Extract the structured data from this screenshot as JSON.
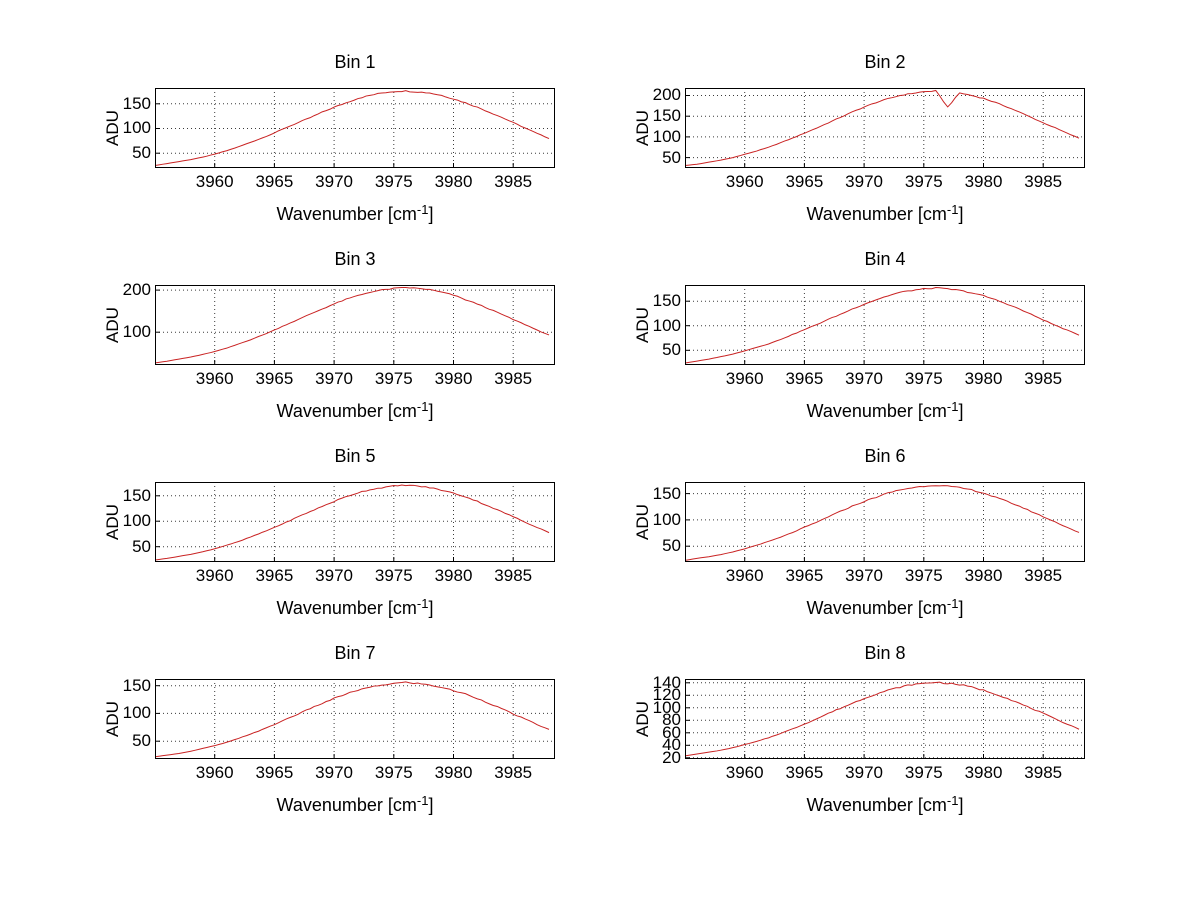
{
  "figure": {
    "background": "#ffffff"
  },
  "axis_labels": {
    "ylabel": "ADU",
    "xlabel_prefix": "Wavenumber [cm",
    "xlabel_sup": "-1",
    "xlabel_suffix": "]"
  },
  "style": {
    "line_color": "#c92323",
    "grid_color": "#3a3a3a",
    "axis_color": "#000000",
    "noise_amp": 2.4
  },
  "chart_data": [
    {
      "type": "line",
      "title": "Bin 1",
      "xlabel": "Wavenumber [cm^-1]",
      "ylabel": "ADU",
      "x_start": 3955,
      "x_step": 1,
      "values": [
        25,
        29,
        33,
        37,
        42,
        48,
        55,
        63,
        72,
        81,
        91,
        102,
        112,
        122,
        133,
        143,
        152,
        161,
        167,
        172,
        175,
        176,
        174,
        172,
        167,
        160,
        152,
        143,
        133,
        123,
        112,
        101,
        90,
        80
      ],
      "xticks": [
        3960,
        3965,
        3970,
        3975,
        3980,
        3985
      ],
      "yticks": [
        50,
        100,
        150
      ],
      "xlim": [
        3955,
        3988.5
      ],
      "ylim": [
        20,
        182
      ],
      "grid": true
    },
    {
      "type": "line",
      "title": "Bin 2",
      "xlabel": "Wavenumber [cm^-1]",
      "ylabel": "ADU",
      "x_start": 3955,
      "x_step": 1,
      "values": [
        31,
        34,
        39,
        44,
        50,
        58,
        66,
        75,
        86,
        97,
        109,
        121,
        134,
        147,
        160,
        172,
        183,
        192,
        200,
        205,
        209,
        211,
        172,
        206,
        200,
        193,
        183,
        172,
        160,
        147,
        134,
        122,
        109,
        97
      ],
      "xticks": [
        3960,
        3965,
        3970,
        3975,
        3980,
        3985
      ],
      "yticks": [
        50,
        100,
        150,
        200
      ],
      "xlim": [
        3955,
        3988.5
      ],
      "ylim": [
        25,
        218
      ],
      "grid": true
    },
    {
      "type": "line",
      "title": "Bin 3",
      "xlabel": "Wavenumber [cm^-1]",
      "ylabel": "ADU",
      "x_start": 3955,
      "x_step": 1,
      "values": [
        27,
        31,
        36,
        41,
        47,
        54,
        62,
        72,
        82,
        93,
        105,
        118,
        130,
        143,
        155,
        167,
        178,
        187,
        195,
        200,
        204,
        206,
        204,
        201,
        195,
        188,
        177,
        167,
        155,
        143,
        130,
        118,
        105,
        93
      ],
      "xticks": [
        3960,
        3965,
        3970,
        3975,
        3980,
        3985
      ],
      "yticks": [
        100,
        200
      ],
      "xlim": [
        3955,
        3988.5
      ],
      "ylim": [
        22,
        212
      ],
      "grid": true
    },
    {
      "type": "line",
      "title": "Bin 4",
      "xlabel": "Wavenumber [cm^-1]",
      "ylabel": "ADU",
      "x_start": 3955,
      "x_step": 1,
      "values": [
        24,
        28,
        32,
        37,
        42,
        49,
        56,
        63,
        72,
        82,
        92,
        102,
        113,
        123,
        134,
        144,
        153,
        161,
        168,
        172,
        175,
        177,
        175,
        172,
        167,
        161,
        153,
        144,
        134,
        123,
        112,
        101,
        91,
        81
      ],
      "xticks": [
        3960,
        3965,
        3970,
        3975,
        3980,
        3985
      ],
      "yticks": [
        50,
        100,
        150
      ],
      "xlim": [
        3955,
        3988.5
      ],
      "ylim": [
        20,
        183
      ],
      "grid": true
    },
    {
      "type": "line",
      "title": "Bin 5",
      "xlabel": "Wavenumber [cm^-1]",
      "ylabel": "ADU",
      "x_start": 3955,
      "x_step": 1,
      "values": [
        24,
        27,
        31,
        35,
        40,
        46,
        53,
        60,
        69,
        78,
        88,
        98,
        109,
        119,
        129,
        139,
        148,
        156,
        162,
        166,
        169,
        171,
        169,
        166,
        161,
        155,
        148,
        139,
        129,
        119,
        109,
        98,
        88,
        78
      ],
      "xticks": [
        3960,
        3965,
        3970,
        3975,
        3980,
        3985
      ],
      "yticks": [
        50,
        100,
        150
      ],
      "xlim": [
        3955,
        3988.5
      ],
      "ylim": [
        20,
        177
      ],
      "grid": true
    },
    {
      "type": "line",
      "title": "Bin 6",
      "xlabel": "Wavenumber [cm^-1]",
      "ylabel": "ADU",
      "x_start": 3955,
      "x_step": 1,
      "values": [
        23,
        27,
        30,
        34,
        39,
        45,
        52,
        59,
        67,
        76,
        86,
        95,
        106,
        116,
        126,
        135,
        143,
        151,
        157,
        161,
        164,
        166,
        164,
        161,
        157,
        151,
        143,
        135,
        126,
        116,
        106,
        96,
        86,
        76
      ],
      "xticks": [
        3960,
        3965,
        3970,
        3975,
        3980,
        3985
      ],
      "yticks": [
        50,
        100,
        150
      ],
      "xlim": [
        3955,
        3988.5
      ],
      "ylim": [
        20,
        172
      ],
      "grid": true
    },
    {
      "type": "line",
      "title": "Bin 7",
      "xlabel": "Wavenumber [cm^-1]",
      "ylabel": "ADU",
      "x_start": 3955,
      "x_step": 1,
      "values": [
        22,
        25,
        28,
        32,
        37,
        42,
        48,
        55,
        63,
        71,
        80,
        90,
        99,
        109,
        118,
        127,
        135,
        142,
        147,
        151,
        154,
        156,
        154,
        151,
        147,
        141,
        135,
        127,
        118,
        109,
        99,
        90,
        80,
        71
      ],
      "xticks": [
        3960,
        3965,
        3970,
        3975,
        3980,
        3985
      ],
      "yticks": [
        50,
        100,
        150
      ],
      "xlim": [
        3955,
        3988.5
      ],
      "ylim": [
        18,
        162
      ],
      "grid": true
    },
    {
      "type": "line",
      "title": "Bin 8",
      "xlabel": "Wavenumber [cm^-1]",
      "ylabel": "ADU",
      "x_start": 3955,
      "x_step": 1,
      "values": [
        23,
        26,
        29,
        32,
        36,
        41,
        46,
        52,
        59,
        66,
        74,
        82,
        91,
        99,
        107,
        115,
        122,
        128,
        133,
        137,
        139,
        141,
        139,
        137,
        133,
        128,
        122,
        115,
        107,
        99,
        91,
        82,
        74,
        66
      ],
      "xticks": [
        3960,
        3965,
        3970,
        3975,
        3980,
        3985
      ],
      "yticks": [
        20,
        40,
        60,
        80,
        100,
        120,
        140
      ],
      "xlim": [
        3955,
        3988.5
      ],
      "ylim": [
        18,
        146
      ],
      "grid": true
    }
  ]
}
